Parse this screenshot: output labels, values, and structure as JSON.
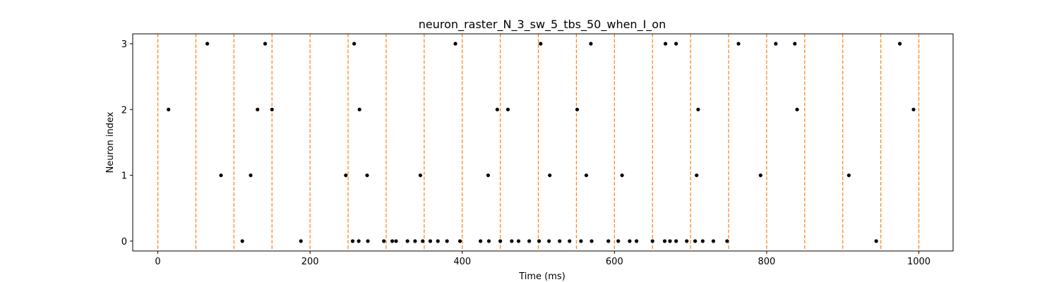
{
  "chart_data": {
    "type": "scatter",
    "title": "neuron_raster_N_3_sw_5_tbs_50_when_I_on",
    "xlabel": "Time (ms)",
    "ylabel": "Neuron index",
    "xlim": [
      -33,
      1045
    ],
    "ylim": [
      -0.15,
      3.15
    ],
    "x_ticks": [
      0,
      200,
      400,
      600,
      800,
      1000
    ],
    "y_ticks": [
      0,
      1,
      2,
      3
    ],
    "grid": false,
    "marker_color": "#000000",
    "vline_color": "#ff7f0e",
    "vlines": [
      0,
      50,
      100,
      150,
      200,
      250,
      300,
      350,
      400,
      450,
      500,
      550,
      600,
      650,
      700,
      750,
      800,
      850,
      900,
      950,
      1000
    ],
    "series": [
      {
        "neuron": 3,
        "x": [
          65,
          141,
          258,
          391,
          503,
          569,
          667,
          681,
          763,
          812,
          837,
          975
        ]
      },
      {
        "neuron": 2,
        "x": [
          14,
          131,
          150,
          265,
          446,
          460,
          551,
          710,
          840,
          993
        ]
      },
      {
        "neuron": 1,
        "x": [
          83,
          122,
          247,
          275,
          345,
          434,
          515,
          563,
          610,
          708,
          792,
          908
        ]
      },
      {
        "neuron": 0,
        "x": [
          111,
          188,
          256,
          264,
          276,
          297,
          308,
          313,
          328,
          338,
          348,
          358,
          368,
          380,
          397,
          424,
          435,
          450,
          465,
          474,
          488,
          501,
          514,
          528,
          541,
          556,
          570,
          592,
          605,
          620,
          629,
          650,
          666,
          673,
          681,
          695,
          706,
          716,
          730,
          748,
          944
        ]
      }
    ]
  }
}
